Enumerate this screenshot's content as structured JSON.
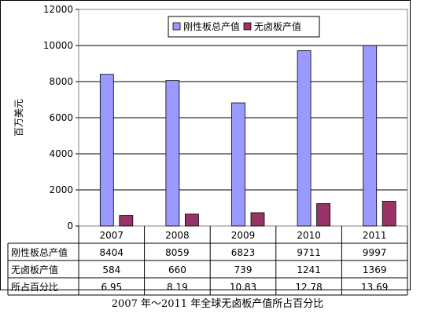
{
  "chart_data": {
    "type": "bar",
    "ylabel": "百万美元",
    "ylim": [
      0,
      12000
    ],
    "yticks": [
      0,
      2000,
      4000,
      6000,
      8000,
      10000,
      12000
    ],
    "grid": true,
    "legend_position": "top-right",
    "categories": [
      "2007",
      "2008",
      "2009",
      "2010",
      "2011"
    ],
    "series": [
      {
        "name": "刚性板总产值",
        "color": "#9999ff",
        "values": [
          8404,
          8059,
          6823,
          9711,
          9997
        ]
      },
      {
        "name": "无卤板产值",
        "color": "#993366",
        "values": [
          584,
          660,
          739,
          1241,
          1369
        ]
      }
    ],
    "table": {
      "rows": [
        {
          "label": "刚性板总产值",
          "values": [
            "8404",
            "8059",
            "6823",
            "9711",
            "9997"
          ]
        },
        {
          "label": "无卤板产值",
          "values": [
            "584",
            "660",
            "739",
            "1241",
            "1369"
          ]
        },
        {
          "label": "所占百分比",
          "values": [
            "6.95",
            "8.19",
            "10.83",
            "12.78",
            "13.69"
          ]
        }
      ]
    }
  },
  "caption": "2007 年～2011 年全球无卤板产值所占百分比"
}
